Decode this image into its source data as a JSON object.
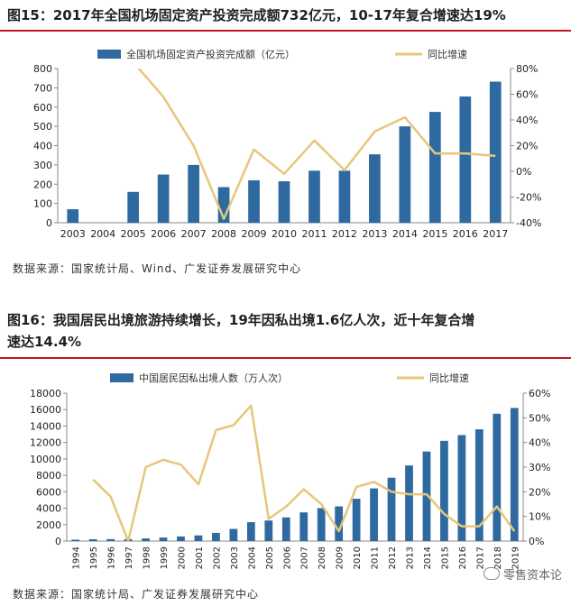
{
  "colors": {
    "bar": "#2e6aa0",
    "line": "#e6c77a",
    "title_rule": "#c01820"
  },
  "figure1": {
    "title": "图15：2017年全国机场固定资产投资完成额732亿元，10-17年复合增速达19%",
    "source": "数据来源：国家统计局、Wind、广发证券发展研究中心"
  },
  "figure2": {
    "title_line1": "图16：我国居民出境旅游持续增长，19年因私出境1.6亿人次，近十年复合增",
    "title_line2": "速达14.4%",
    "source": "数据来源：国家统计局、广发证券发展研究中心"
  },
  "watermark": "零售资本论",
  "chart_data": [
    {
      "type": "bar",
      "categories": [
        "2003",
        "2004",
        "2005",
        "2006",
        "2007",
        "2008",
        "2009",
        "2010",
        "2011",
        "2012",
        "2013",
        "2014",
        "2015",
        "2016",
        "2017"
      ],
      "series": [
        {
          "name": "全国机场固定资产投资完成额（亿元）",
          "type": "bar",
          "axis": "left",
          "values": [
            70,
            0,
            160,
            250,
            300,
            185,
            220,
            215,
            270,
            270,
            355,
            500,
            575,
            655,
            732
          ]
        },
        {
          "name": "同比增速",
          "type": "line",
          "axis": "right",
          "values": [
            null,
            null,
            85,
            58,
            20,
            -37,
            17,
            -2,
            24,
            1,
            31,
            42,
            14,
            14,
            12
          ]
        }
      ],
      "y_left": {
        "lim": [
          0,
          800
        ],
        "ticks": [
          "0",
          "100",
          "200",
          "300",
          "400",
          "500",
          "600",
          "700",
          "800"
        ]
      },
      "y_right": {
        "lim": [
          -40,
          80
        ],
        "ticks": [
          "-40%",
          "-20%",
          "0%",
          "20%",
          "40%",
          "60%",
          "80%"
        ]
      },
      "legend": "top"
    },
    {
      "type": "bar",
      "categories": [
        "1994",
        "1995",
        "1996",
        "1997",
        "1998",
        "1999",
        "2000",
        "2001",
        "2002",
        "2003",
        "2004",
        "2005",
        "2006",
        "2007",
        "2008",
        "2009",
        "2010",
        "2011",
        "2012",
        "2013",
        "2014",
        "2015",
        "2016",
        "2017",
        "2018",
        "2019"
      ],
      "series": [
        {
          "name": "中国居民因私出境人数（万人次）",
          "type": "bar",
          "axis": "left",
          "values": [
            170,
            220,
            240,
            240,
            320,
            430,
            560,
            690,
            1000,
            1480,
            2300,
            2500,
            2880,
            3490,
            4010,
            4220,
            5150,
            6410,
            7710,
            9200,
            10900,
            12200,
            12900,
            13600,
            15500,
            16200
          ]
        },
        {
          "name": "同比增速",
          "type": "line",
          "axis": "right",
          "values": [
            null,
            25,
            18,
            0,
            30,
            33,
            31,
            23,
            45,
            47,
            55,
            9,
            14,
            21,
            15,
            4,
            22,
            24,
            20,
            19,
            19,
            11,
            6,
            6,
            14,
            4
          ]
        }
      ],
      "y_left": {
        "lim": [
          0,
          18000
        ],
        "ticks": [
          "0",
          "2000",
          "4000",
          "6000",
          "8000",
          "10000",
          "12000",
          "14000",
          "16000",
          "18000"
        ]
      },
      "y_right": {
        "lim": [
          0,
          60
        ],
        "ticks": [
          "0%",
          "10%",
          "20%",
          "30%",
          "40%",
          "50%",
          "60%"
        ]
      },
      "legend": "top"
    }
  ]
}
